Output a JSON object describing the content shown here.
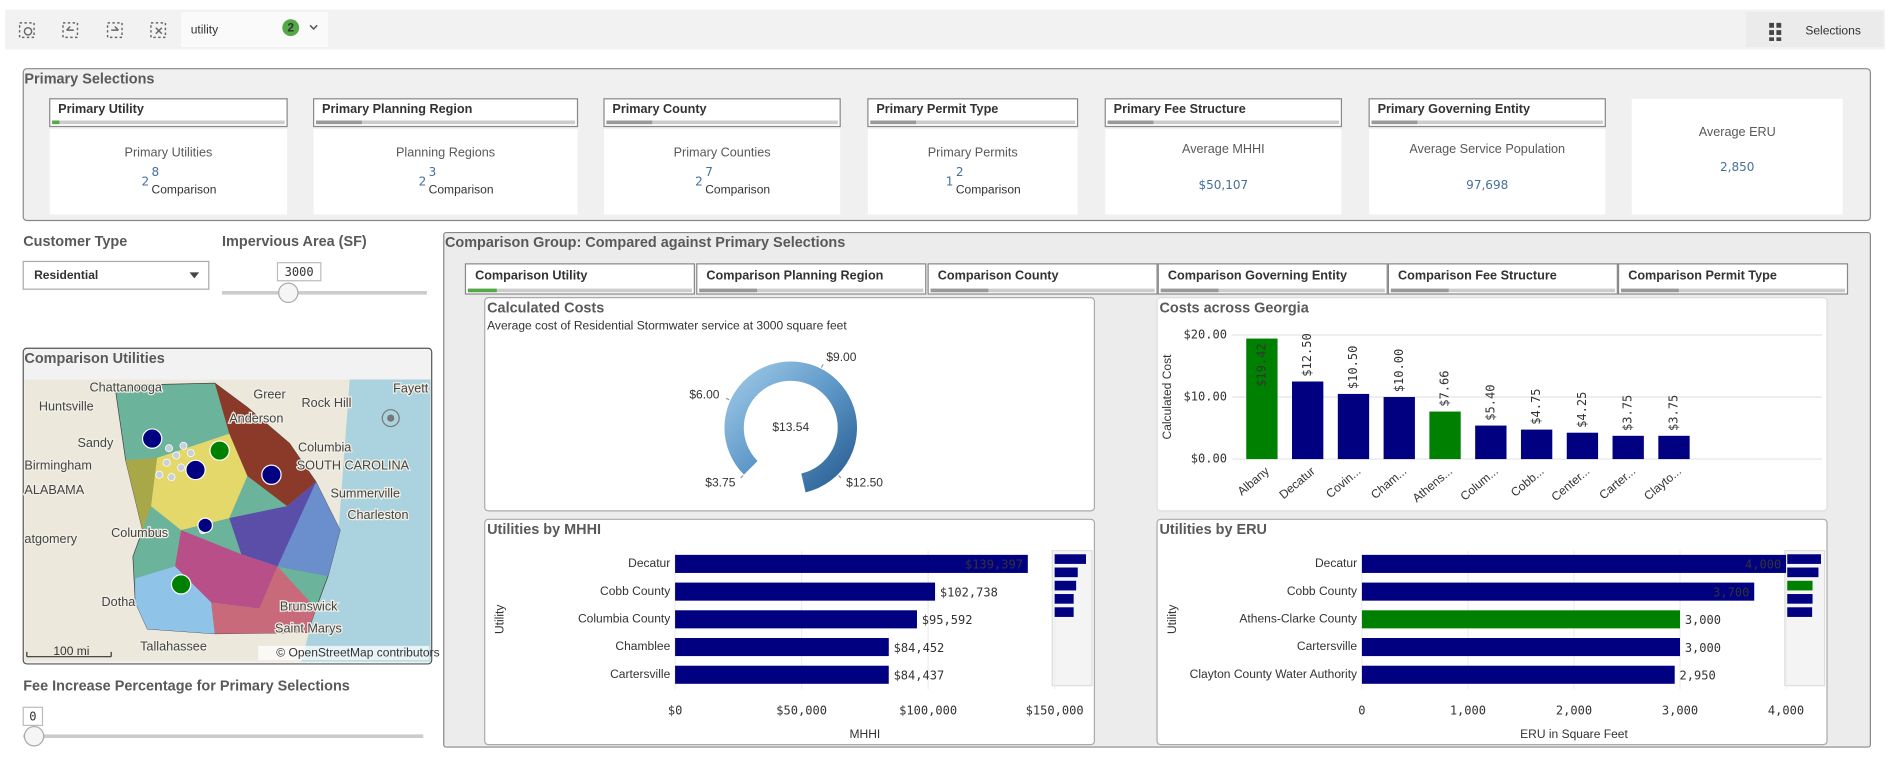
{
  "toolbar": {
    "search": "utility",
    "badge": "2",
    "selections": "Selections"
  },
  "primary": {
    "title": "Primary Selections",
    "filters": [
      "Primary Utility",
      "Primary Planning Region",
      "Primary County",
      "Primary Permit Type",
      "Primary Fee Structure",
      "Primary Governing Entity"
    ],
    "kpis": [
      {
        "label": "Primary Utilities",
        "value": "2",
        "sup": "8",
        "note": "Comparison"
      },
      {
        "label": "Planning Regions",
        "value": "2",
        "sup": "3",
        "note": "Comparison"
      },
      {
        "label": "Primary Counties",
        "value": "2",
        "sup": "7",
        "note": "Comparison"
      },
      {
        "label": "Primary Permits",
        "value": "1",
        "sup": "2",
        "note": "Comparison"
      },
      {
        "label": "Average MHHI",
        "value": "$50,107"
      },
      {
        "label": "Average Service Population",
        "value": "97,698"
      },
      {
        "label": "Average ERU",
        "value": "2,850"
      }
    ]
  },
  "controls": {
    "customer_type_label": "Customer Type",
    "customer_type": "Residential",
    "impervious_label": "Impervious Area (SF)",
    "impervious_value": "3000",
    "fee_label": "Fee Increase Percentage for Primary Selections",
    "fee_value": "0"
  },
  "map": {
    "title": "Comparison Utilities",
    "labels": [
      "Chattanooga",
      "Greer",
      "Rock Hill",
      "Fayett",
      "Huntsville",
      "Anderson",
      "Sandy",
      "Columbia",
      "Birmingham",
      "SOUTH CAROLINA",
      "ALABAMA",
      "Summerville",
      "Charleston",
      "Columbus",
      "atgomery",
      "Dotha",
      "Brunswick",
      "Saint Marys",
      "Tallahassee"
    ],
    "scale": "100 mi",
    "attribution": "© OpenStreetMap contributors"
  },
  "comparison": {
    "title": "Comparison Group: Compared against Primary Selections",
    "filters": [
      "Comparison Utility",
      "Comparison Planning Region",
      "Comparison County",
      "Comparison Governing Entity",
      "Comparison Fee Structure",
      "Comparison Permit Type"
    ]
  },
  "chart_data": [
    {
      "type": "gauge",
      "title": "Calculated Costs",
      "subtitle": "Average cost of Residential Stormwater service at 3000 square feet",
      "value": 13.54,
      "value_label": "$13.54",
      "range": [
        3.75,
        12.5
      ],
      "ticks": [
        {
          "value": 3.75,
          "label": "$3.75"
        },
        {
          "value": 6,
          "label": "$6.00"
        },
        {
          "value": 9,
          "label": "$9.00"
        },
        {
          "value": 12.5,
          "label": "$12.50"
        }
      ]
    },
    {
      "type": "bar",
      "title": "Costs across Georgia",
      "y_label": "Calculated Cost",
      "categories": [
        "Albany",
        "Decatur",
        "Covin...",
        "Cham...",
        "Athens...",
        "Colum...",
        "Cobb...",
        "Center...",
        "Carter...",
        "Clayto..."
      ],
      "values": [
        19.42,
        12.5,
        10.5,
        10.0,
        7.66,
        5.4,
        4.75,
        4.25,
        3.75,
        3.75
      ],
      "value_labels": [
        "$19.42",
        "$12.50",
        "$10.50",
        "$10.00",
        "$7.66",
        "$5.40",
        "$4.75",
        "$4.25",
        "$3.75",
        "$3.75"
      ],
      "colors": [
        "#008000",
        "#000080",
        "#000080",
        "#000080",
        "#008000",
        "#000080",
        "#000080",
        "#000080",
        "#000080",
        "#000080"
      ],
      "ylim": [
        0,
        20
      ],
      "yticks": [
        {
          "value": 0,
          "label": "$0.00"
        },
        {
          "value": 10,
          "label": "$10.00"
        },
        {
          "value": 20,
          "label": "$20.00"
        }
      ],
      "grid": true
    },
    {
      "type": "hbar",
      "title": "Utilities by MHHI",
      "x_label": "MHHI",
      "y_label": "Utility",
      "categories": [
        "Decatur",
        "Cobb County",
        "Columbia County",
        "Chamblee",
        "Cartersville"
      ],
      "values": [
        139397,
        102738,
        95592,
        84452,
        84437
      ],
      "value_labels": [
        "$139,397",
        "$102,738",
        "$95,592",
        "$84,452",
        "$84,437"
      ],
      "colors": [
        "#000080",
        "#000080",
        "#000080",
        "#000080",
        "#000080"
      ],
      "xlim": [
        0,
        150000
      ],
      "xticks": [
        {
          "value": 0,
          "label": "$0"
        },
        {
          "value": 50000,
          "label": "$50,000"
        },
        {
          "value": 100000,
          "label": "$100,000"
        },
        {
          "value": 150000,
          "label": "$150,000"
        }
      ]
    },
    {
      "type": "hbar",
      "title": "Utilities by ERU",
      "x_label": "ERU in Square Feet",
      "y_label": "Utility",
      "categories": [
        "Decatur",
        "Cobb County",
        "Athens-Clarke County",
        "Cartersville",
        "Clayton County Water Authority"
      ],
      "values": [
        4000,
        3700,
        3000,
        3000,
        2950
      ],
      "value_labels": [
        "4,000",
        "3,700",
        "3,000",
        "3,000",
        "2,950"
      ],
      "colors": [
        "#000080",
        "#000080",
        "#008000",
        "#000080",
        "#000080"
      ],
      "xlim": [
        0,
        4000
      ],
      "xticks": [
        0,
        {
          "value": 1000,
          "label": "1,000"
        },
        {
          "value": 2000,
          "label": "2,000"
        },
        {
          "value": 3000,
          "label": "3,000"
        },
        {
          "value": 4000,
          "label": "4,000"
        }
      ]
    }
  ]
}
